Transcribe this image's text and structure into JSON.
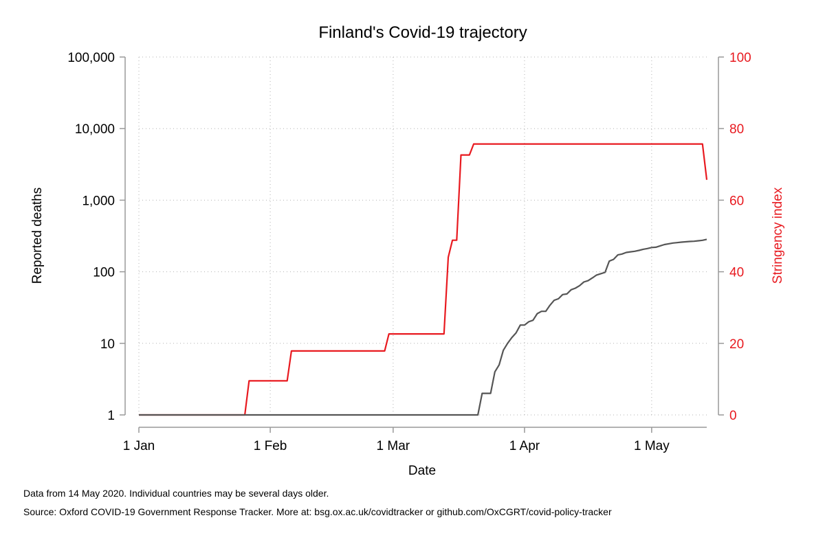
{
  "chart_data": {
    "type": "line",
    "title": "Finland's Covid-19 trajectory",
    "xlabel": "Date",
    "ylabel_left": "Reported deaths",
    "ylabel_right": "Stringency index",
    "x_ticks": [
      "1 Jan",
      "1 Feb",
      "1 Mar",
      "1 Apr",
      "1 May"
    ],
    "x_tick_dates": [
      "2020-01-01",
      "2020-02-01",
      "2020-03-01",
      "2020-04-01",
      "2020-05-01"
    ],
    "xlim": [
      "2020-01-01",
      "2020-05-14"
    ],
    "y_left_scale": "log",
    "y_left_ticks": [
      1,
      10,
      100,
      1000,
      10000,
      100000
    ],
    "y_left_tick_labels": [
      "1",
      "10",
      "100",
      "1,000",
      "10,000",
      "100,000"
    ],
    "y_left_lim": [
      1,
      100000
    ],
    "y_right_ticks": [
      0,
      20,
      40,
      60,
      80,
      100
    ],
    "y_right_tick_labels": [
      "0",
      "20",
      "40",
      "60",
      "80",
      "100"
    ],
    "y_right_lim": [
      0,
      100
    ],
    "grid": true,
    "colors": {
      "deaths": "#555555",
      "stringency": "#e8191f",
      "axis": "#999999",
      "grid": "#b0b0b0"
    },
    "series": [
      {
        "axis": "right",
        "x": [
          "2020-01-01",
          "2020-01-26",
          "2020-01-27",
          "2020-02-05",
          "2020-02-06",
          "2020-02-28",
          "2020-02-29",
          "2020-03-13",
          "2020-03-14",
          "2020-03-15",
          "2020-03-16",
          "2020-03-17",
          "2020-03-18",
          "2020-03-19",
          "2020-03-20",
          "2020-03-21",
          "2020-05-13",
          "2020-05-14"
        ],
        "values": [
          0,
          0,
          9.52,
          9.52,
          17.86,
          17.86,
          22.62,
          22.62,
          44.05,
          48.81,
          48.81,
          72.62,
          72.62,
          72.62,
          75.71,
          75.71,
          75.71,
          65.71
        ]
      },
      {
        "axis": "left",
        "x": [
          "2020-01-01",
          "2020-03-21",
          "2020-03-22",
          "2020-03-24",
          "2020-03-25",
          "2020-03-26",
          "2020-03-27",
          "2020-03-28",
          "2020-03-29",
          "2020-03-30",
          "2020-03-31",
          "2020-04-01",
          "2020-04-02",
          "2020-04-03",
          "2020-04-04",
          "2020-04-05",
          "2020-04-06",
          "2020-04-07",
          "2020-04-08",
          "2020-04-09",
          "2020-04-10",
          "2020-04-11",
          "2020-04-12",
          "2020-04-13",
          "2020-04-14",
          "2020-04-15",
          "2020-04-16",
          "2020-04-17",
          "2020-04-18",
          "2020-04-19",
          "2020-04-20",
          "2020-04-21",
          "2020-04-22",
          "2020-04-23",
          "2020-04-24",
          "2020-04-25",
          "2020-04-26",
          "2020-04-27",
          "2020-04-28",
          "2020-04-29",
          "2020-04-30",
          "2020-05-01",
          "2020-05-02",
          "2020-05-03",
          "2020-05-04",
          "2020-05-05",
          "2020-05-06",
          "2020-05-07",
          "2020-05-08",
          "2020-05-09",
          "2020-05-10",
          "2020-05-11",
          "2020-05-12",
          "2020-05-13",
          "2020-05-14"
        ],
        "values": [
          1,
          1,
          2,
          2,
          4,
          5,
          8,
          10,
          12,
          14,
          18,
          18,
          20,
          21,
          26,
          28,
          28,
          34,
          40,
          42,
          48,
          49,
          56,
          59,
          64,
          72,
          75,
          82,
          90,
          94,
          98,
          141,
          149,
          172,
          177,
          186,
          190,
          193,
          199,
          206,
          211,
          218,
          220,
          230,
          240,
          246,
          252,
          255,
          259,
          262,
          265,
          267,
          271,
          275,
          284
        ]
      }
    ],
    "footnotes": [
      "Data from 14 May 2020. Individual countries may be several days older.",
      "Source: Oxford COVID-19 Government Response Tracker. More at: bsg.ox.ac.uk/covidtracker or github.com/OxCGRT/covid-policy-tracker"
    ]
  }
}
